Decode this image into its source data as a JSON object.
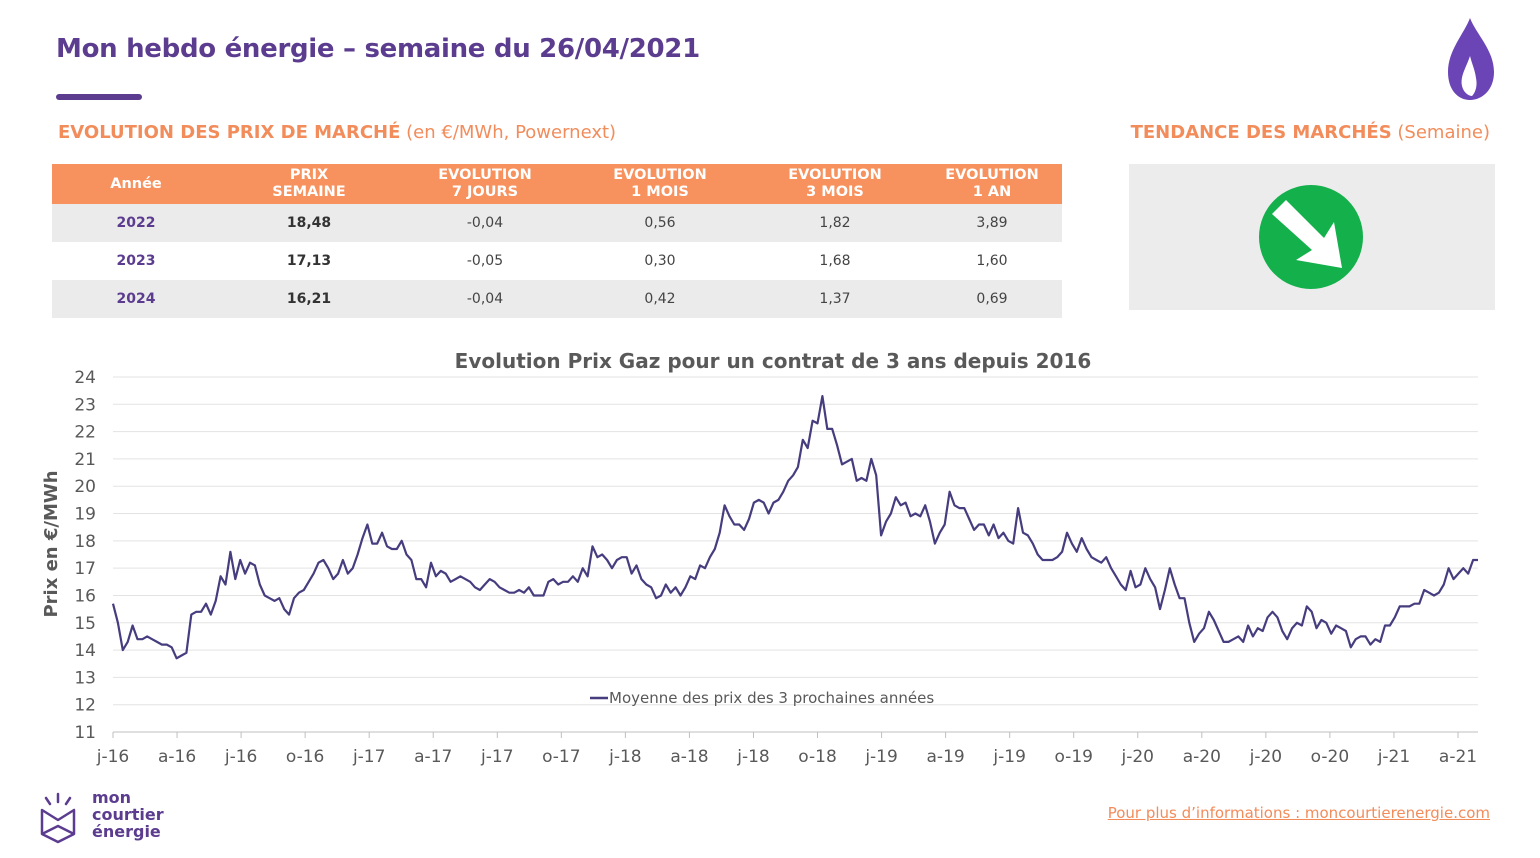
{
  "header": {
    "title": "Mon hebdo énergie – semaine du 26/04/2021"
  },
  "sections": {
    "market_title": "EVOLUTION DES PRIX DE MARCHÉ",
    "market_subtitle": "(en €/MWh, Powernext)",
    "trend_title": "TENDANCE DES MARCHÉS",
    "trend_subtitle": "(Semaine)"
  },
  "table": {
    "headers": [
      "Année",
      "PRIX\nSEMAINE",
      "EVOLUTION\n7 JOURS",
      "EVOLUTION\n1 MOIS",
      "EVOLUTION\n3 MOIS",
      "EVOLUTION\n1 AN"
    ],
    "rows": [
      [
        "2022",
        "18,48",
        "-0,04",
        "0,56",
        "1,82",
        "3,89"
      ],
      [
        "2023",
        "17,13",
        "-0,05",
        "0,30",
        "1,68",
        "1,60"
      ],
      [
        "2024",
        "16,21",
        "-0,04",
        "0,42",
        "1,37",
        "0,69"
      ]
    ]
  },
  "trend": {
    "direction": "down-right",
    "color": "#13b04b",
    "icon": "arrow-down-right-icon"
  },
  "footer": {
    "link_text": "Pour plus d’informations : moncourtierenergie.com",
    "logo_line1": "mon",
    "logo_line2": "courtier",
    "logo_line3": "énergie"
  },
  "colors": {
    "brand_purple": "#5b3c8f",
    "accent_orange": "#f7925e",
    "line_color": "#463d7f"
  },
  "chart_data": {
    "type": "line",
    "title": "Evolution Prix Gaz pour un contrat de 3 ans depuis 2016",
    "xlabel": "",
    "ylabel": "Prix en €/MWh",
    "ylim": [
      11,
      24
    ],
    "yticks": [
      11,
      12,
      13,
      14,
      15,
      16,
      17,
      18,
      19,
      20,
      21,
      22,
      23,
      24
    ],
    "xticks": [
      "j-16",
      "a-16",
      "j-16",
      "o-16",
      "j-17",
      "a-17",
      "j-17",
      "o-17",
      "j-18",
      "a-18",
      "j-18",
      "o-18",
      "j-19",
      "a-19",
      "j-19",
      "o-19",
      "j-20",
      "a-20",
      "j-20",
      "o-20",
      "j-21",
      "a-21"
    ],
    "x_unit": "weeks from start (Jan 2016)",
    "grid": true,
    "legend_position": "bottom-center",
    "series": [
      {
        "name": "Moyenne des prix des 3 prochaines années",
        "points": [
          [
            0,
            15.7
          ],
          [
            1,
            15.0
          ],
          [
            2,
            14.0
          ],
          [
            3,
            14.3
          ],
          [
            4,
            14.9
          ],
          [
            5,
            14.4
          ],
          [
            6,
            14.4
          ],
          [
            7,
            14.5
          ],
          [
            8,
            14.4
          ],
          [
            9,
            14.3
          ],
          [
            10,
            14.2
          ],
          [
            11,
            14.2
          ],
          [
            12,
            14.1
          ],
          [
            13,
            13.7
          ],
          [
            14,
            13.8
          ],
          [
            15,
            13.9
          ],
          [
            16,
            15.3
          ],
          [
            17,
            15.4
          ],
          [
            18,
            15.4
          ],
          [
            19,
            15.7
          ],
          [
            20,
            15.3
          ],
          [
            21,
            15.8
          ],
          [
            22,
            16.7
          ],
          [
            23,
            16.4
          ],
          [
            24,
            17.6
          ],
          [
            25,
            16.6
          ],
          [
            26,
            17.3
          ],
          [
            27,
            16.8
          ],
          [
            28,
            17.2
          ],
          [
            29,
            17.1
          ],
          [
            30,
            16.4
          ],
          [
            31,
            16.0
          ],
          [
            32,
            15.9
          ],
          [
            33,
            15.8
          ],
          [
            34,
            15.9
          ],
          [
            35,
            15.5
          ],
          [
            36,
            15.3
          ],
          [
            37,
            15.9
          ],
          [
            38,
            16.1
          ],
          [
            39,
            16.2
          ],
          [
            40,
            16.5
          ],
          [
            41,
            16.8
          ],
          [
            42,
            17.2
          ],
          [
            43,
            17.3
          ],
          [
            44,
            17.0
          ],
          [
            45,
            16.6
          ],
          [
            46,
            16.8
          ],
          [
            47,
            17.3
          ],
          [
            48,
            16.8
          ],
          [
            49,
            17.0
          ],
          [
            50,
            17.5
          ],
          [
            51,
            18.1
          ],
          [
            52,
            18.6
          ],
          [
            53,
            17.9
          ],
          [
            54,
            17.9
          ],
          [
            55,
            18.3
          ],
          [
            56,
            17.8
          ],
          [
            57,
            17.7
          ],
          [
            58,
            17.7
          ],
          [
            59,
            18.0
          ],
          [
            60,
            17.5
          ],
          [
            61,
            17.3
          ],
          [
            62,
            16.6
          ],
          [
            63,
            16.6
          ],
          [
            64,
            16.3
          ],
          [
            65,
            17.2
          ],
          [
            66,
            16.7
          ],
          [
            67,
            16.9
          ],
          [
            68,
            16.8
          ],
          [
            69,
            16.5
          ],
          [
            70,
            16.6
          ],
          [
            71,
            16.7
          ],
          [
            72,
            16.6
          ],
          [
            73,
            16.5
          ],
          [
            74,
            16.3
          ],
          [
            75,
            16.2
          ],
          [
            76,
            16.4
          ],
          [
            77,
            16.6
          ],
          [
            78,
            16.5
          ],
          [
            79,
            16.3
          ],
          [
            80,
            16.2
          ],
          [
            81,
            16.1
          ],
          [
            82,
            16.1
          ],
          [
            83,
            16.2
          ],
          [
            84,
            16.1
          ],
          [
            85,
            16.3
          ],
          [
            86,
            16.0
          ],
          [
            87,
            16.0
          ],
          [
            88,
            16.0
          ],
          [
            89,
            16.5
          ],
          [
            90,
            16.6
          ],
          [
            91,
            16.4
          ],
          [
            92,
            16.5
          ],
          [
            93,
            16.5
          ],
          [
            94,
            16.7
          ],
          [
            95,
            16.5
          ],
          [
            96,
            17.0
          ],
          [
            97,
            16.7
          ],
          [
            98,
            17.8
          ],
          [
            99,
            17.4
          ],
          [
            100,
            17.5
          ],
          [
            101,
            17.3
          ],
          [
            102,
            17.0
          ],
          [
            103,
            17.3
          ],
          [
            104,
            17.4
          ],
          [
            105,
            17.4
          ],
          [
            106,
            16.8
          ],
          [
            107,
            17.1
          ],
          [
            108,
            16.6
          ],
          [
            109,
            16.4
          ],
          [
            110,
            16.3
          ],
          [
            111,
            15.9
          ],
          [
            112,
            16.0
          ],
          [
            113,
            16.4
          ],
          [
            114,
            16.1
          ],
          [
            115,
            16.3
          ],
          [
            116,
            16.0
          ],
          [
            117,
            16.3
          ],
          [
            118,
            16.7
          ],
          [
            119,
            16.6
          ],
          [
            120,
            17.1
          ],
          [
            121,
            17.0
          ],
          [
            122,
            17.4
          ],
          [
            123,
            17.7
          ],
          [
            124,
            18.3
          ],
          [
            125,
            19.3
          ],
          [
            126,
            18.9
          ],
          [
            127,
            18.6
          ],
          [
            128,
            18.6
          ],
          [
            129,
            18.4
          ],
          [
            130,
            18.8
          ],
          [
            131,
            19.4
          ],
          [
            132,
            19.5
          ],
          [
            133,
            19.4
          ],
          [
            134,
            19.0
          ],
          [
            135,
            19.4
          ],
          [
            136,
            19.5
          ],
          [
            137,
            19.8
          ],
          [
            138,
            20.2
          ],
          [
            139,
            20.4
          ],
          [
            140,
            20.7
          ],
          [
            141,
            21.7
          ],
          [
            142,
            21.4
          ],
          [
            143,
            22.4
          ],
          [
            144,
            22.3
          ],
          [
            145,
            23.3
          ],
          [
            146,
            22.1
          ],
          [
            147,
            22.1
          ],
          [
            148,
            21.5
          ],
          [
            149,
            20.8
          ],
          [
            150,
            20.9
          ],
          [
            151,
            21.0
          ],
          [
            152,
            20.2
          ],
          [
            153,
            20.3
          ],
          [
            154,
            20.2
          ],
          [
            155,
            21.0
          ],
          [
            156,
            20.4
          ],
          [
            157,
            18.2
          ],
          [
            158,
            18.7
          ],
          [
            159,
            19.0
          ],
          [
            160,
            19.6
          ],
          [
            161,
            19.3
          ],
          [
            162,
            19.4
          ],
          [
            163,
            18.9
          ],
          [
            164,
            19.0
          ],
          [
            165,
            18.9
          ],
          [
            166,
            19.3
          ],
          [
            167,
            18.7
          ],
          [
            168,
            17.9
          ],
          [
            169,
            18.3
          ],
          [
            170,
            18.6
          ],
          [
            171,
            19.8
          ],
          [
            172,
            19.3
          ],
          [
            173,
            19.2
          ],
          [
            174,
            19.2
          ],
          [
            175,
            18.8
          ],
          [
            176,
            18.4
          ],
          [
            177,
            18.6
          ],
          [
            178,
            18.6
          ],
          [
            179,
            18.2
          ],
          [
            180,
            18.6
          ],
          [
            181,
            18.1
          ],
          [
            182,
            18.3
          ],
          [
            183,
            18.0
          ],
          [
            184,
            17.9
          ],
          [
            185,
            19.2
          ],
          [
            186,
            18.3
          ],
          [
            187,
            18.2
          ],
          [
            188,
            17.9
          ],
          [
            189,
            17.5
          ],
          [
            190,
            17.3
          ],
          [
            191,
            17.3
          ],
          [
            192,
            17.3
          ],
          [
            193,
            17.4
          ],
          [
            194,
            17.6
          ],
          [
            195,
            18.3
          ],
          [
            196,
            17.9
          ],
          [
            197,
            17.6
          ],
          [
            198,
            18.1
          ],
          [
            199,
            17.7
          ],
          [
            200,
            17.4
          ],
          [
            201,
            17.3
          ],
          [
            202,
            17.2
          ],
          [
            203,
            17.4
          ],
          [
            204,
            17.0
          ],
          [
            205,
            16.7
          ],
          [
            206,
            16.4
          ],
          [
            207,
            16.2
          ],
          [
            208,
            16.9
          ],
          [
            209,
            16.3
          ],
          [
            210,
            16.4
          ],
          [
            211,
            17.0
          ],
          [
            212,
            16.6
          ],
          [
            213,
            16.3
          ],
          [
            214,
            15.5
          ],
          [
            215,
            16.2
          ],
          [
            216,
            17.0
          ],
          [
            217,
            16.4
          ],
          [
            218,
            15.9
          ],
          [
            219,
            15.9
          ],
          [
            220,
            15.0
          ],
          [
            221,
            14.3
          ],
          [
            222,
            14.6
          ],
          [
            223,
            14.8
          ],
          [
            224,
            15.4
          ],
          [
            225,
            15.1
          ],
          [
            226,
            14.7
          ],
          [
            227,
            14.3
          ],
          [
            228,
            14.3
          ],
          [
            229,
            14.4
          ],
          [
            230,
            14.5
          ],
          [
            231,
            14.3
          ],
          [
            232,
            14.9
          ],
          [
            233,
            14.5
          ],
          [
            234,
            14.8
          ],
          [
            235,
            14.7
          ],
          [
            236,
            15.2
          ],
          [
            237,
            15.4
          ],
          [
            238,
            15.2
          ],
          [
            239,
            14.7
          ],
          [
            240,
            14.4
          ],
          [
            241,
            14.8
          ],
          [
            242,
            15.0
          ],
          [
            243,
            14.9
          ],
          [
            244,
            15.6
          ],
          [
            245,
            15.4
          ],
          [
            246,
            14.8
          ],
          [
            247,
            15.1
          ],
          [
            248,
            15.0
          ],
          [
            249,
            14.6
          ],
          [
            250,
            14.9
          ],
          [
            251,
            14.8
          ],
          [
            252,
            14.7
          ],
          [
            253,
            14.1
          ],
          [
            254,
            14.4
          ],
          [
            255,
            14.5
          ],
          [
            256,
            14.5
          ],
          [
            257,
            14.2
          ],
          [
            258,
            14.4
          ],
          [
            259,
            14.3
          ],
          [
            260,
            14.9
          ],
          [
            261,
            14.9
          ],
          [
            262,
            15.2
          ],
          [
            263,
            15.6
          ],
          [
            264,
            15.6
          ],
          [
            265,
            15.6
          ],
          [
            266,
            15.7
          ],
          [
            267,
            15.7
          ],
          [
            268,
            16.2
          ],
          [
            269,
            16.1
          ],
          [
            270,
            16.0
          ],
          [
            271,
            16.1
          ],
          [
            272,
            16.4
          ],
          [
            273,
            17.0
          ],
          [
            274,
            16.6
          ],
          [
            275,
            16.8
          ],
          [
            276,
            17.0
          ],
          [
            277,
            16.8
          ],
          [
            278,
            17.3
          ],
          [
            279,
            17.3
          ]
        ]
      }
    ]
  }
}
